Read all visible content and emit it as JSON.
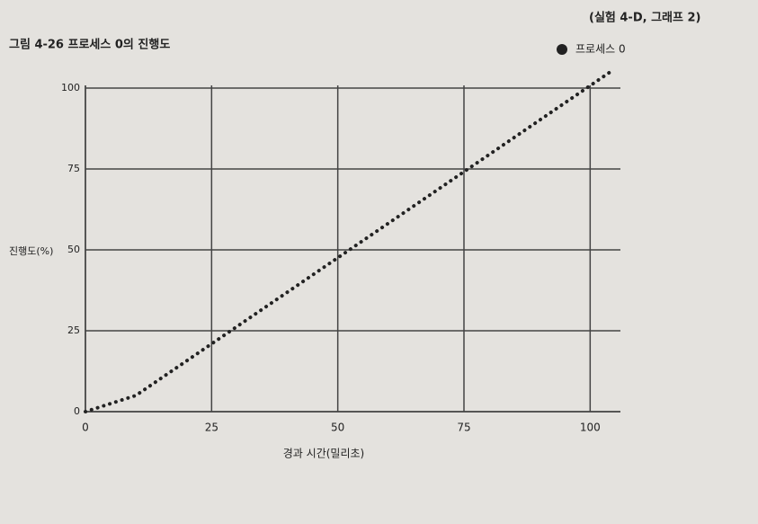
{
  "chart_data": {
    "type": "line",
    "title": "그림 4-26 프로세스 0의 진행도",
    "annotation": "(실험 4-D, 그래프 2)",
    "x_label": "경과 시간(밀리초)",
    "y_label": "진행도(%)",
    "x": [
      0,
      10,
      104
    ],
    "series": [
      {
        "name": "프로세스 0",
        "color": "#222222",
        "values": [
          0,
          5,
          105
        ]
      }
    ],
    "xlim": [
      0,
      106
    ],
    "xticks": [
      0,
      25,
      50,
      75,
      100
    ],
    "ylim": [
      0,
      105
    ],
    "yticks": [
      0,
      25,
      50,
      75,
      100
    ],
    "grid": true,
    "legend": "top-right"
  }
}
